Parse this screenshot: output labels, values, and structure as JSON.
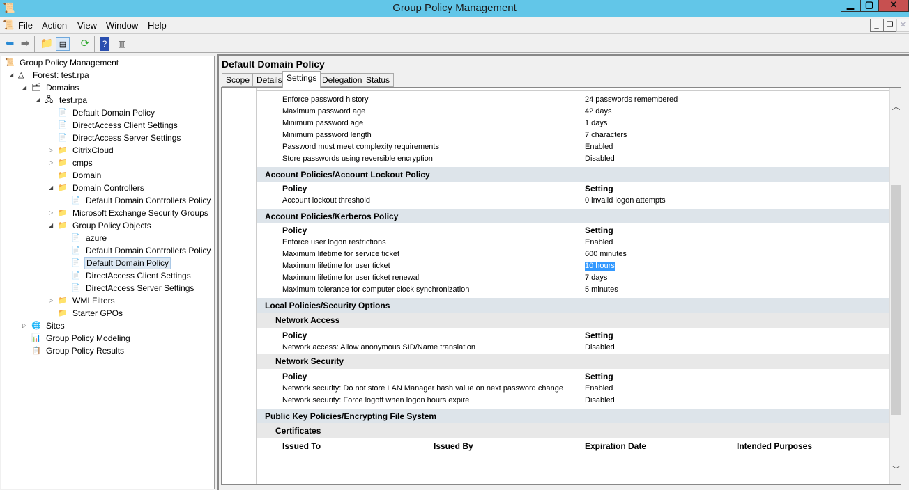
{
  "window": {
    "title": "Group Policy Management"
  },
  "menu": [
    "File",
    "Action",
    "View",
    "Window",
    "Help"
  ],
  "toolbar": [
    "back-icon",
    "forward-icon",
    "up-folder-icon",
    "show-hide-tree-icon",
    "refresh-icon",
    "help-icon",
    "action-pane-icon"
  ],
  "tree": [
    {
      "label": "Group Policy Management",
      "level": 0,
      "arrow": "",
      "icon": "gpm-icon"
    },
    {
      "label": "Forest: test.rpa",
      "level": 1,
      "arrow": "open",
      "icon": "forest-icon"
    },
    {
      "label": "Domains",
      "level": 2,
      "arrow": "open",
      "icon": "domains-icon"
    },
    {
      "label": "test.rpa",
      "level": 3,
      "arrow": "open",
      "icon": "domain-icon"
    },
    {
      "label": "Default Domain Policy",
      "level": 4,
      "arrow": "",
      "icon": "gpo-link-icon"
    },
    {
      "label": "DirectAccess Client Settings",
      "level": 4,
      "arrow": "",
      "icon": "gpo-link-icon"
    },
    {
      "label": "DirectAccess Server Settings",
      "level": 4,
      "arrow": "",
      "icon": "gpo-link-icon"
    },
    {
      "label": "CitrixCloud",
      "level": 4,
      "arrow": "closed",
      "icon": "ou-icon"
    },
    {
      "label": "cmps",
      "level": 4,
      "arrow": "closed",
      "icon": "ou-icon"
    },
    {
      "label": "Domain",
      "level": 4,
      "arrow": "",
      "icon": "ou-icon"
    },
    {
      "label": "Domain Controllers",
      "level": 4,
      "arrow": "open",
      "icon": "ou-icon"
    },
    {
      "label": "Default Domain Controllers Policy",
      "level": 5,
      "arrow": "",
      "icon": "gpo-link-icon"
    },
    {
      "label": "Microsoft Exchange Security Groups",
      "level": 4,
      "arrow": "closed",
      "icon": "ou-icon"
    },
    {
      "label": "Group Policy Objects",
      "level": 4,
      "arrow": "open",
      "icon": "folder-icon"
    },
    {
      "label": "azure",
      "level": 5,
      "arrow": "",
      "icon": "gpo-icon"
    },
    {
      "label": "Default Domain Controllers Policy",
      "level": 5,
      "arrow": "",
      "icon": "gpo-icon"
    },
    {
      "label": "Default Domain Policy",
      "level": 5,
      "arrow": "",
      "icon": "gpo-icon",
      "selected": true
    },
    {
      "label": "DirectAccess Client Settings",
      "level": 5,
      "arrow": "",
      "icon": "gpo-icon"
    },
    {
      "label": "DirectAccess Server Settings",
      "level": 5,
      "arrow": "",
      "icon": "gpo-icon"
    },
    {
      "label": "WMI Filters",
      "level": 4,
      "arrow": "closed",
      "icon": "folder-icon"
    },
    {
      "label": "Starter GPOs",
      "level": 4,
      "arrow": "",
      "icon": "folder-icon"
    },
    {
      "label": "Sites",
      "level": 2,
      "arrow": "closed",
      "icon": "sites-icon"
    },
    {
      "label": "Group Policy Modeling",
      "level": 2,
      "arrow": "",
      "icon": "modeling-icon"
    },
    {
      "label": "Group Policy Results",
      "level": 2,
      "arrow": "",
      "icon": "results-icon"
    }
  ],
  "panel": {
    "title": "Default Domain Policy",
    "tabs": [
      "Scope",
      "Details",
      "Settings",
      "Delegation",
      "Status"
    ],
    "active_tab": "Settings"
  },
  "report": [
    {
      "type": "row",
      "c": [
        "Enforce password history",
        "24 passwords remembered"
      ]
    },
    {
      "type": "row",
      "c": [
        "Maximum password age",
        "42 days"
      ]
    },
    {
      "type": "row",
      "c": [
        "Minimum password age",
        "1 days"
      ]
    },
    {
      "type": "row",
      "c": [
        "Minimum password length",
        "7 characters"
      ]
    },
    {
      "type": "row",
      "c": [
        "Password must meet complexity requirements",
        "Enabled"
      ]
    },
    {
      "type": "row",
      "c": [
        "Store passwords using reversible encryption",
        "Disabled"
      ]
    },
    {
      "type": "sec",
      "t": "Account Policies/Account Lockout Policy"
    },
    {
      "type": "hdr",
      "c": [
        "Policy",
        "Setting"
      ]
    },
    {
      "type": "row",
      "c": [
        "Account lockout threshold",
        "0 invalid logon attempts"
      ]
    },
    {
      "type": "sec",
      "t": "Account Policies/Kerberos Policy"
    },
    {
      "type": "hdr",
      "c": [
        "Policy",
        "Setting"
      ]
    },
    {
      "type": "row",
      "c": [
        "Enforce user logon restrictions",
        "Enabled"
      ]
    },
    {
      "type": "row",
      "c": [
        "Maximum lifetime for service ticket",
        "600 minutes"
      ]
    },
    {
      "type": "row",
      "c": [
        "Maximum lifetime for user ticket",
        "10 hours"
      ],
      "highlight": true
    },
    {
      "type": "row",
      "c": [
        "Maximum lifetime for user ticket renewal",
        "7 days"
      ]
    },
    {
      "type": "row",
      "c": [
        "Maximum tolerance for computer clock synchronization",
        "5 minutes"
      ]
    },
    {
      "type": "sec",
      "t": "Local Policies/Security Options"
    },
    {
      "type": "sub",
      "t": "Network Access"
    },
    {
      "type": "hdr",
      "c": [
        "Policy",
        "Setting"
      ]
    },
    {
      "type": "row",
      "c": [
        "Network access: Allow anonymous SID/Name translation",
        "Disabled"
      ]
    },
    {
      "type": "sub",
      "t": "Network Security"
    },
    {
      "type": "hdr",
      "c": [
        "Policy",
        "Setting"
      ]
    },
    {
      "type": "row",
      "c": [
        "Network security: Do not store LAN Manager hash value on next password change",
        "Enabled"
      ]
    },
    {
      "type": "row",
      "c": [
        "Network security: Force logoff when logon hours expire",
        "Disabled"
      ]
    },
    {
      "type": "sec",
      "t": "Public Key Policies/Encrypting File System"
    },
    {
      "type": "sub",
      "t": "Certificates"
    },
    {
      "type": "hdr",
      "c": [
        "Issued To",
        "Issued By",
        "Expiration Date",
        "Intended Purposes"
      ]
    }
  ]
}
